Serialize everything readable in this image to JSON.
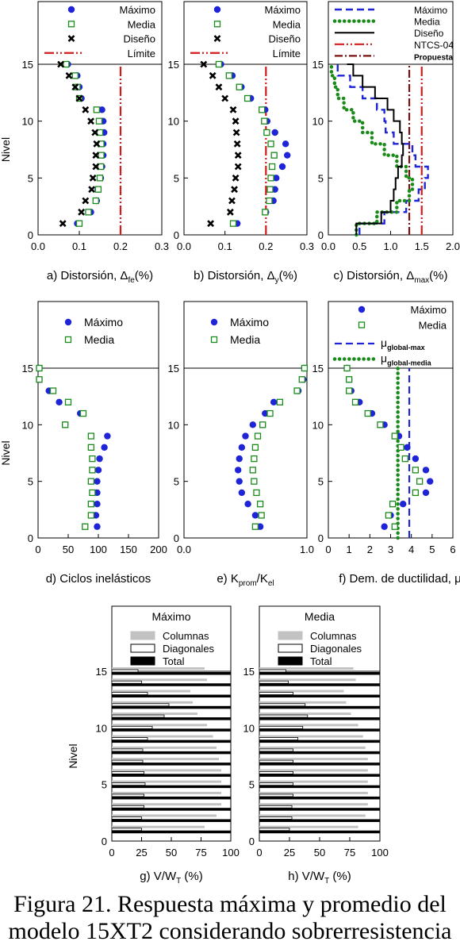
{
  "caption": {
    "line1": "Figura 21. Respuesta máxima y promedio del",
    "line2": "modelo 15XT2 considerando sobrerresistencia"
  },
  "colors": {
    "maximo": "#1f24d6",
    "media": "#1a8a1a",
    "diseno": "#000000",
    "limite": "#d21c1c",
    "propuesta": "#7a1010",
    "columnas": "#c2c2c2",
    "total": "#000000"
  },
  "chart_data": [
    {
      "id": "a",
      "type": "scatter",
      "label": "a) Distorsión, Δ",
      "label_sub": "fe",
      "label_tail": "(%)",
      "ylabel": "Nivel",
      "xlim": [
        0,
        0.3
      ],
      "ylim": [
        0,
        15
      ],
      "xticks": [
        "0.0",
        "0.1",
        "0.2",
        "0.3"
      ],
      "yticks": [
        "0",
        "5",
        "10",
        "15"
      ],
      "legend": [
        "Máximo",
        "Media",
        "Diseño",
        "Límite"
      ],
      "limit": 0.2,
      "series": [
        {
          "name": "Máximo",
          "x": [
            0.095,
            0.128,
            0.142,
            0.145,
            0.152,
            0.155,
            0.158,
            0.158,
            0.16,
            0.158,
            0.155,
            0.105,
            0.1,
            0.095,
            0.072
          ]
        },
        {
          "name": "Media",
          "x": [
            0.1,
            0.122,
            0.14,
            0.146,
            0.15,
            0.152,
            0.153,
            0.153,
            0.15,
            0.148,
            0.142,
            0.1,
            0.095,
            0.09,
            0.068
          ]
        },
        {
          "name": "Diseño",
          "x": [
            0.06,
            0.105,
            0.115,
            0.13,
            0.133,
            0.14,
            0.14,
            0.142,
            0.138,
            0.128,
            0.115,
            0.1,
            0.09,
            0.075,
            0.055
          ]
        }
      ]
    },
    {
      "id": "b",
      "type": "scatter",
      "label": "b) Distorsión, Δ",
      "label_sub": "y",
      "label_tail": "(%)",
      "ylabel": "",
      "xlim": [
        0,
        0.3
      ],
      "ylim": [
        0,
        15
      ],
      "xticks": [
        "0.0",
        "0.1",
        "0.2",
        "0.3"
      ],
      "yticks": [
        "0",
        "5",
        "10",
        "15"
      ],
      "legend": [
        "Máximo",
        "Media",
        "Diseño",
        "Límite"
      ],
      "limit": 0.2,
      "series": [
        {
          "name": "Máximo",
          "x": [
            0.13,
            0.2,
            0.218,
            0.222,
            0.225,
            0.24,
            0.252,
            0.248,
            0.222,
            0.203,
            0.198,
            0.163,
            0.14,
            0.118,
            0.09
          ]
        },
        {
          "name": "Media",
          "x": [
            0.12,
            0.198,
            0.208,
            0.21,
            0.212,
            0.215,
            0.22,
            0.212,
            0.202,
            0.196,
            0.19,
            0.155,
            0.135,
            0.11,
            0.085
          ]
        },
        {
          "name": "Diseño",
          "x": [
            0.065,
            0.113,
            0.117,
            0.123,
            0.126,
            0.132,
            0.132,
            0.13,
            0.128,
            0.126,
            0.12,
            0.1,
            0.085,
            0.07,
            0.048
          ]
        }
      ]
    },
    {
      "id": "c",
      "type": "line",
      "label": "c) Distorsión, Δ",
      "label_sub": "max",
      "label_tail": "(%)",
      "ylabel": "",
      "xlim": [
        0,
        2.0
      ],
      "ylim": [
        0,
        15
      ],
      "xticks": [
        "0.0",
        "0.5",
        "1.0",
        "1.5",
        "2.0"
      ],
      "yticks": [
        "0",
        "5",
        "10",
        "15"
      ],
      "legend": [
        "Máximo",
        "Media",
        "Diseño",
        "NTCS-04",
        "Propuesta"
      ],
      "ntcs": 1.5,
      "propuesta": 1.3,
      "series": [
        {
          "name": "Máximo",
          "x": [
            0.5,
            0.9,
            1.25,
            1.45,
            1.55,
            1.6,
            1.4,
            1.35,
            1.05,
            0.92,
            0.9,
            0.78,
            0.55,
            0.35,
            0.15,
            0.1
          ]
        },
        {
          "name": "Media",
          "x": [
            0.45,
            0.78,
            1.1,
            1.3,
            1.35,
            1.25,
            1.1,
            0.9,
            0.7,
            0.55,
            0.4,
            0.25,
            0.15,
            0.1,
            0.05,
            0.05
          ]
        },
        {
          "name": "Diseño",
          "x": [
            0.45,
            0.85,
            1.0,
            1.05,
            1.08,
            1.12,
            1.18,
            1.2,
            1.18,
            1.15,
            1.05,
            0.95,
            0.75,
            0.55,
            0.4,
            0.3
          ]
        }
      ]
    },
    {
      "id": "d",
      "type": "scatter",
      "label": "d) Ciclos inelásticos",
      "ylabel": "Nivel",
      "xlim": [
        0,
        200
      ],
      "ylim": [
        0,
        15
      ],
      "xticks": [
        "0",
        "50",
        "100",
        "150",
        "200"
      ],
      "yticks": [
        "0",
        "5",
        "10",
        "15"
      ],
      "legend": [
        "Máximo",
        "Media"
      ],
      "series": [
        {
          "name": "Máximo",
          "x": [
            98,
            96,
            98,
            98,
            98,
            100,
            102,
            110,
            115,
            45,
            70,
            35,
            18,
            2,
            2
          ]
        },
        {
          "name": "Media",
          "x": [
            78,
            88,
            88,
            90,
            88,
            90,
            90,
            88,
            88,
            45,
            75,
            50,
            25,
            2,
            2
          ]
        }
      ]
    },
    {
      "id": "e",
      "type": "scatter",
      "label": "e) K",
      "label_sub": "prom",
      "label_mid": "/K",
      "label_sub2": "el",
      "ylabel": "",
      "xlim": [
        0,
        1.0
      ],
      "ylim": [
        0,
        15
      ],
      "xticks": [
        "0.0",
        "1.0"
      ],
      "yticks": [
        "0",
        "5",
        "10",
        "15"
      ],
      "legend": [
        "Máximo",
        "Media"
      ],
      "series": [
        {
          "name": "Máximo",
          "x": [
            0.62,
            0.58,
            0.52,
            0.47,
            0.45,
            0.44,
            0.45,
            0.47,
            0.5,
            0.56,
            0.66,
            0.73,
            0.93,
            0.97,
            0.98
          ]
        },
        {
          "name": "Media",
          "x": [
            0.58,
            0.63,
            0.62,
            0.59,
            0.57,
            0.56,
            0.57,
            0.58,
            0.6,
            0.64,
            0.7,
            0.78,
            0.92,
            0.96,
            0.98
          ]
        }
      ]
    },
    {
      "id": "f",
      "type": "scatter",
      "label": "f) Dem. de ductilidad, μ",
      "ylabel": "",
      "xlim": [
        0,
        6
      ],
      "ylim": [
        0,
        15
      ],
      "xticks": [
        "0",
        "1",
        "2",
        "3",
        "4",
        "5",
        "6"
      ],
      "yticks": [
        "0",
        "5",
        "10",
        "15"
      ],
      "legend": [
        "Máximo",
        "Media",
        "μglobal-max",
        "μglobal-media"
      ],
      "mu_max": 3.9,
      "mu_media": 3.35,
      "series": [
        {
          "name": "Máximo",
          "x": [
            2.7,
            3.0,
            3.6,
            4.7,
            4.9,
            4.7,
            4.2,
            3.8,
            3.4,
            2.7,
            2.1,
            1.5,
            1.1,
            1.0,
            0.9
          ]
        },
        {
          "name": "Media",
          "x": [
            3.2,
            2.9,
            3.1,
            4.2,
            4.4,
            4.2,
            3.7,
            3.5,
            3.2,
            2.5,
            1.9,
            1.3,
            1.0,
            1.0,
            0.9
          ]
        }
      ]
    },
    {
      "id": "g",
      "type": "bar",
      "label": "g) V/W",
      "label_sub": "T",
      "label_tail": " (%)",
      "legend_title": "Máximo",
      "legend": [
        "Columnas",
        "Diagonales",
        "Total"
      ],
      "ylabel": "Nivel",
      "xlim": [
        0,
        100
      ],
      "ylim": [
        0,
        15
      ],
      "xticks": [
        "0",
        "25",
        "50",
        "75",
        "100"
      ],
      "yticks": [
        "0",
        "5",
        "10",
        "15"
      ],
      "columnas": [
        78,
        88,
        92,
        92,
        92,
        92,
        90,
        88,
        85,
        80,
        72,
        68,
        66,
        80,
        78
      ],
      "diagonales": [
        25,
        25,
        27,
        27,
        28,
        27,
        26,
        26,
        30,
        34,
        44,
        48,
        30,
        25,
        22
      ],
      "total": [
        100,
        100,
        100,
        100,
        100,
        100,
        100,
        100,
        100,
        100,
        100,
        100,
        100,
        100,
        100
      ]
    },
    {
      "id": "h",
      "type": "bar",
      "label": "h) V/W",
      "label_sub": "T",
      "label_tail": " (%)",
      "legend_title": "Media",
      "legend": [
        "Columnas",
        "Diagonales",
        "Total"
      ],
      "ylabel": "",
      "xlim": [
        0,
        100
      ],
      "ylim": [
        0,
        15
      ],
      "xticks": [
        "0",
        "25",
        "50",
        "75",
        "100"
      ],
      "yticks": [
        "0",
        "5",
        "10",
        "15"
      ],
      "columnas": [
        82,
        88,
        90,
        90,
        90,
        90,
        90,
        88,
        86,
        82,
        76,
        72,
        70,
        80,
        78
      ],
      "diagonales": [
        25,
        27,
        27,
        28,
        28,
        28,
        28,
        28,
        32,
        36,
        40,
        38,
        28,
        24,
        22
      ],
      "total": [
        100,
        100,
        100,
        100,
        100,
        100,
        100,
        100,
        100,
        100,
        100,
        100,
        100,
        100,
        100
      ]
    }
  ]
}
